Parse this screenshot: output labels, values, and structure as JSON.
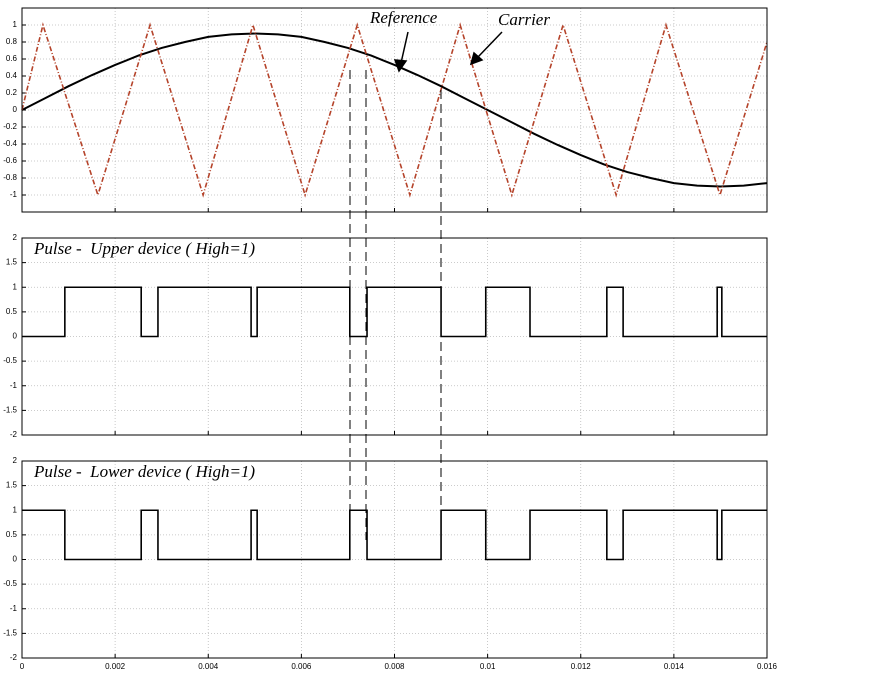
{
  "chart_data": [
    {
      "type": "line",
      "series": [
        {
          "name": "Reference",
          "color": "#000000",
          "x": [
            0,
            0.0005,
            0.001,
            0.0015,
            0.002,
            0.0025,
            0.003,
            0.0035,
            0.004,
            0.0045,
            0.005,
            0.0055,
            0.006,
            0.0065,
            0.007,
            0.0075,
            0.008,
            0.0085,
            0.009,
            0.0095,
            0.01,
            0.0105,
            0.011,
            0.0115,
            0.012,
            0.0125,
            0.013,
            0.0135,
            0.014,
            0.0145,
            0.015,
            0.0155,
            0.016
          ],
          "values": [
            0,
            0.14,
            0.28,
            0.41,
            0.53,
            0.64,
            0.73,
            0.8,
            0.86,
            0.89,
            0.9,
            0.89,
            0.86,
            0.8,
            0.73,
            0.64,
            0.53,
            0.41,
            0.28,
            0.14,
            0,
            -0.14,
            -0.28,
            -0.41,
            -0.53,
            -0.64,
            -0.73,
            -0.8,
            -0.86,
            -0.89,
            -0.9,
            -0.89,
            -0.86
          ]
        },
        {
          "name": "Carrier",
          "color": "#b5432a",
          "x": [
            0,
            0.00045,
            0.00163,
            0.00275,
            0.00389,
            0.00496,
            0.00608,
            0.0072,
            0.00833,
            0.00941,
            0.01052,
            0.01162,
            0.01276,
            0.01383,
            0.01499,
            0.016
          ],
          "values": [
            0,
            1,
            -1,
            1,
            -1,
            1,
            -1,
            1,
            -1,
            1,
            -1,
            1,
            -1,
            1,
            -1,
            0.8
          ]
        }
      ],
      "xlim": [
        0,
        0.016
      ],
      "xticks": [
        0,
        0.002,
        0.004,
        0.006,
        0.008,
        0.01,
        0.012,
        0.014,
        0.016
      ],
      "xtick_labels": false,
      "ylim": [
        -1.2,
        1.2
      ],
      "yticks": [
        -1,
        -0.8,
        -0.6,
        -0.4,
        -0.2,
        0,
        0.2,
        0.4,
        0.6,
        0.8,
        1
      ],
      "grid": true
    },
    {
      "type": "line",
      "title": "Pulse -  Upper device ( High=1)",
      "series": [
        {
          "color": "#000000",
          "x": [
            0,
            0.00092,
            0.00092,
            0.00256,
            0.00256,
            0.00292,
            0.00292,
            0.00492,
            0.00492,
            0.00505,
            0.00505,
            0.00704,
            0.00704,
            0.00741,
            0.00741,
            0.009,
            0.009,
            0.00996,
            0.00996,
            0.01091,
            0.01091,
            0.01256,
            0.01256,
            0.01291,
            0.01291,
            0.01493,
            0.01493,
            0.01503,
            0.01503,
            0.016
          ],
          "values": [
            0,
            0,
            1,
            1,
            0,
            0,
            1,
            1,
            0,
            0,
            1,
            1,
            0,
            0,
            1,
            1,
            0,
            0,
            1,
            1,
            0,
            0,
            1,
            1,
            0,
            0,
            1,
            1,
            0,
            0
          ]
        }
      ],
      "xlim": [
        0,
        0.016
      ],
      "xticks": [
        0,
        0.002,
        0.004,
        0.006,
        0.008,
        0.01,
        0.012,
        0.014,
        0.016
      ],
      "xtick_labels": false,
      "ylim": [
        -2,
        2
      ],
      "yticks": [
        -2,
        -1.5,
        -1,
        -0.5,
        0,
        0.5,
        1,
        1.5,
        2
      ],
      "grid": true
    },
    {
      "type": "line",
      "title": "Pulse -  Lower device ( High=1)",
      "series": [
        {
          "color": "#000000",
          "x": [
            0,
            0.00092,
            0.00092,
            0.00256,
            0.00256,
            0.00292,
            0.00292,
            0.00492,
            0.00492,
            0.00505,
            0.00505,
            0.00704,
            0.00704,
            0.00741,
            0.00741,
            0.009,
            0.009,
            0.00996,
            0.00996,
            0.01091,
            0.01091,
            0.01256,
            0.01256,
            0.01291,
            0.01291,
            0.01493,
            0.01493,
            0.01503,
            0.01503,
            0.016
          ],
          "values": [
            1,
            1,
            0,
            0,
            1,
            1,
            0,
            0,
            1,
            1,
            0,
            0,
            1,
            1,
            0,
            0,
            1,
            1,
            0,
            0,
            1,
            1,
            0,
            0,
            1,
            1,
            0,
            0,
            1,
            1
          ]
        }
      ],
      "xlim": [
        0,
        0.016
      ],
      "xticks": [
        0,
        0.002,
        0.004,
        0.006,
        0.008,
        0.01,
        0.012,
        0.014,
        0.016
      ],
      "xtick_labels": true,
      "ylim": [
        -2,
        2
      ],
      "yticks": [
        -2,
        -1.5,
        -1,
        -0.5,
        0,
        0.5,
        1,
        1.5,
        2
      ],
      "grid": true
    }
  ]
}
